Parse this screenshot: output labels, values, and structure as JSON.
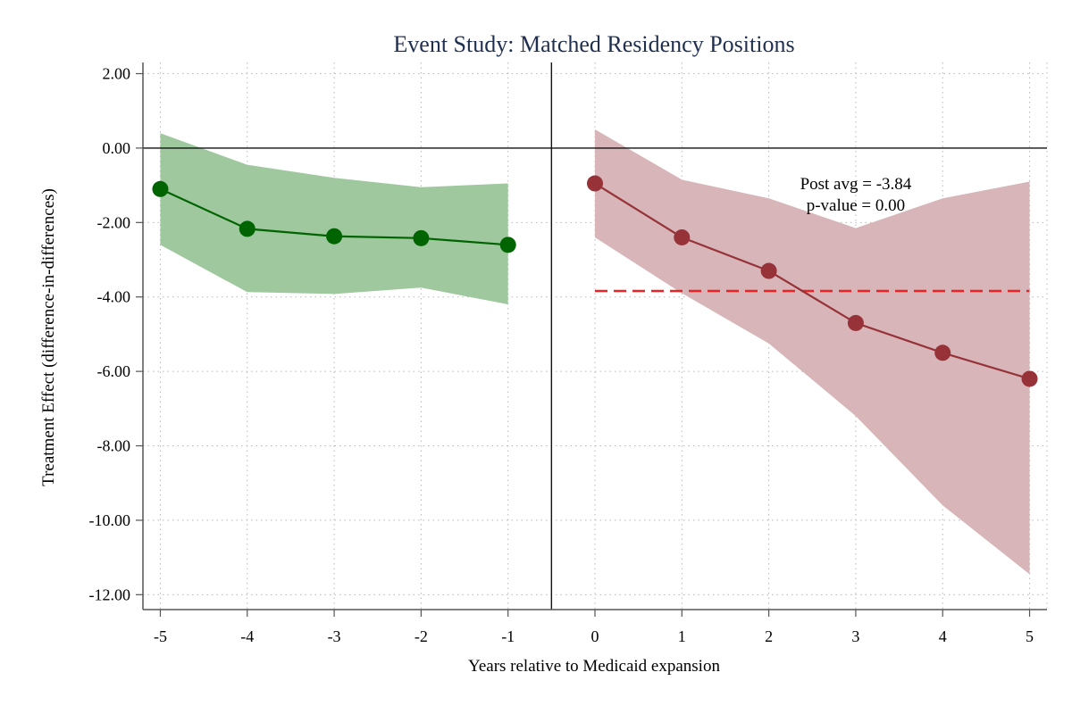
{
  "chart_data": {
    "type": "line",
    "title": "Event Study: Matched Residency Positions",
    "xlabel": "Years relative to Medicaid expansion",
    "ylabel": "Treatment Effect (difference-in-differences)",
    "xlim": [
      -5.2,
      5.2
    ],
    "ylim": [
      -12.4,
      2.3
    ],
    "x_ticks": [
      -5,
      -4,
      -3,
      -2,
      -1,
      0,
      1,
      2,
      3,
      4,
      5
    ],
    "x_tick_labels": [
      "-5",
      "-4",
      "-3",
      "-2",
      "-1",
      "0",
      "1",
      "2",
      "3",
      "4",
      "5"
    ],
    "y_ticks": [
      2,
      0,
      -2,
      -4,
      -6,
      -8,
      -10,
      -12
    ],
    "y_tick_labels": [
      "2.00",
      "0.00",
      "-2.00",
      "-4.00",
      "-6.00",
      "-8.00",
      "-10.00",
      "-12.00"
    ],
    "grid": true,
    "reference_lines": {
      "horizontal_y": 0,
      "vertical_x": -0.5
    },
    "series": [
      {
        "x": [
          -5,
          -4,
          -3,
          -2,
          -1
        ],
        "y": [
          -1.1,
          -2.17,
          -2.37,
          -2.42,
          -2.6
        ],
        "ci_low": [
          -2.6,
          -3.87,
          -3.92,
          -3.75,
          -4.2
        ],
        "ci_high": [
          0.4,
          -0.45,
          -0.8,
          -1.05,
          -0.95
        ],
        "line_color": "#006400",
        "band_color": "#9fc89f"
      },
      {
        "x": [
          0,
          1,
          2,
          3,
          4,
          5
        ],
        "y": [
          -0.95,
          -2.4,
          -3.3,
          -4.7,
          -5.5,
          -6.2
        ],
        "ci_low": [
          -2.4,
          -3.9,
          -5.25,
          -7.2,
          -9.6,
          -11.45
        ],
        "ci_high": [
          0.5,
          -0.85,
          -1.35,
          -2.15,
          -1.35,
          -0.9
        ],
        "line_color": "#963238",
        "band_color": "#d7b5b8"
      }
    ],
    "post_average": {
      "value": -3.84,
      "x_start": 0,
      "x_end": 5,
      "color": "#ee2222"
    },
    "annotation": {
      "line1": "Post avg = -3.84",
      "line2": "p-value = 0.00",
      "x": 3,
      "y_line1": -1.1,
      "y_line2": -1.68
    }
  }
}
